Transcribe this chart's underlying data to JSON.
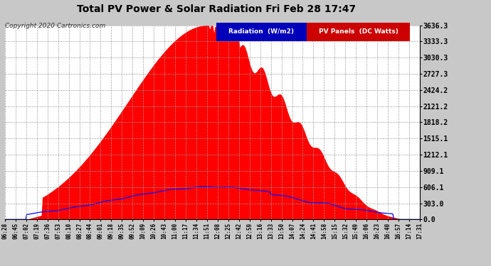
{
  "title": "Total PV Power & Solar Radiation Fri Feb 28 17:47",
  "copyright": "Copyright 2020 Cartronics.com",
  "y_ticks": [
    0.0,
    303.0,
    606.1,
    909.1,
    1212.1,
    1515.1,
    1818.2,
    2121.2,
    2424.2,
    2727.3,
    3030.3,
    3333.3,
    3636.3
  ],
  "y_max": 3636.3,
  "background_color": "#c8c8c8",
  "plot_bg_color": "#ffffff",
  "grid_color": "#999999",
  "title_color": "#000000",
  "red_fill_color": "#ff0000",
  "blue_line_color": "#0000ff",
  "legend_radiation_bg": "#0000bb",
  "legend_pv_bg": "#cc0000",
  "x_labels": [
    "06:28",
    "06:45",
    "07:02",
    "07:19",
    "07:36",
    "07:53",
    "08:10",
    "08:27",
    "08:44",
    "09:01",
    "09:18",
    "09:35",
    "09:52",
    "10:09",
    "10:26",
    "10:43",
    "11:00",
    "11:17",
    "11:34",
    "11:51",
    "12:08",
    "12:25",
    "12:42",
    "12:59",
    "13:16",
    "13:33",
    "13:50",
    "14:07",
    "14:24",
    "14:41",
    "14:58",
    "15:15",
    "15:32",
    "15:49",
    "16:06",
    "16:23",
    "16:40",
    "16:57",
    "17:14",
    "17:31"
  ],
  "pv_peak": 3636.3,
  "radiation_peak": 606.1
}
